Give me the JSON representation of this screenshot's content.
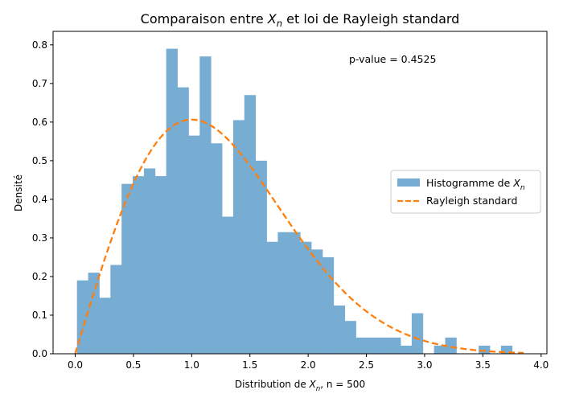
{
  "chart_data": {
    "type": "bar",
    "title_prefix": "Comparaison entre ",
    "title_var": "X",
    "title_sub": "n",
    "title_suffix": " et loi de Rayleigh standard",
    "xlabel_prefix": "Distribution de ",
    "xlabel_var": "X",
    "xlabel_sub": "n",
    "xlabel_suffix": ", n = 500",
    "ylabel": "Densité",
    "annotation": "p-value = 0.4525",
    "xlim": [
      -0.19,
      4.05
    ],
    "ylim": [
      0,
      0.835
    ],
    "xticks": [
      "0.0",
      "0.5",
      "1.0",
      "1.5",
      "2.0",
      "2.5",
      "3.0",
      "3.5",
      "4.0"
    ],
    "xtick_values": [
      0,
      0.5,
      1.0,
      1.5,
      2.0,
      2.5,
      3.0,
      3.5,
      4.0
    ],
    "yticks": [
      "0.0",
      "0.1",
      "0.2",
      "0.3",
      "0.4",
      "0.5",
      "0.6",
      "0.7",
      "0.8"
    ],
    "ytick_values": [
      0,
      0.1,
      0.2,
      0.3,
      0.4,
      0.5,
      0.6,
      0.7,
      0.8
    ],
    "bin_start": 0.015,
    "bin_width": 0.0958,
    "histogram": [
      0.19,
      0.21,
      0.145,
      0.23,
      0.44,
      0.46,
      0.48,
      0.46,
      0.79,
      0.69,
      0.565,
      0.77,
      0.545,
      0.355,
      0.605,
      0.67,
      0.5,
      0.29,
      0.315,
      0.315,
      0.29,
      0.27,
      0.25,
      0.125,
      0.085,
      0.042,
      0.042,
      0.042,
      0.042,
      0.021,
      0.105,
      0.0,
      0.021,
      0.042,
      0.0,
      0.0,
      0.021,
      0.0,
      0.021
    ],
    "legend": {
      "position": "center-right",
      "hist_prefix": "Histogramme de ",
      "hist_var": "X",
      "hist_sub": "n",
      "curve_label": "Rayleigh standard"
    },
    "colors": {
      "histogram": "#77acd3",
      "curve": "#ff7f0e"
    },
    "curve": {
      "name": "Rayleigh standard",
      "x_range": [
        0,
        3.85
      ],
      "samples": 200
    }
  }
}
